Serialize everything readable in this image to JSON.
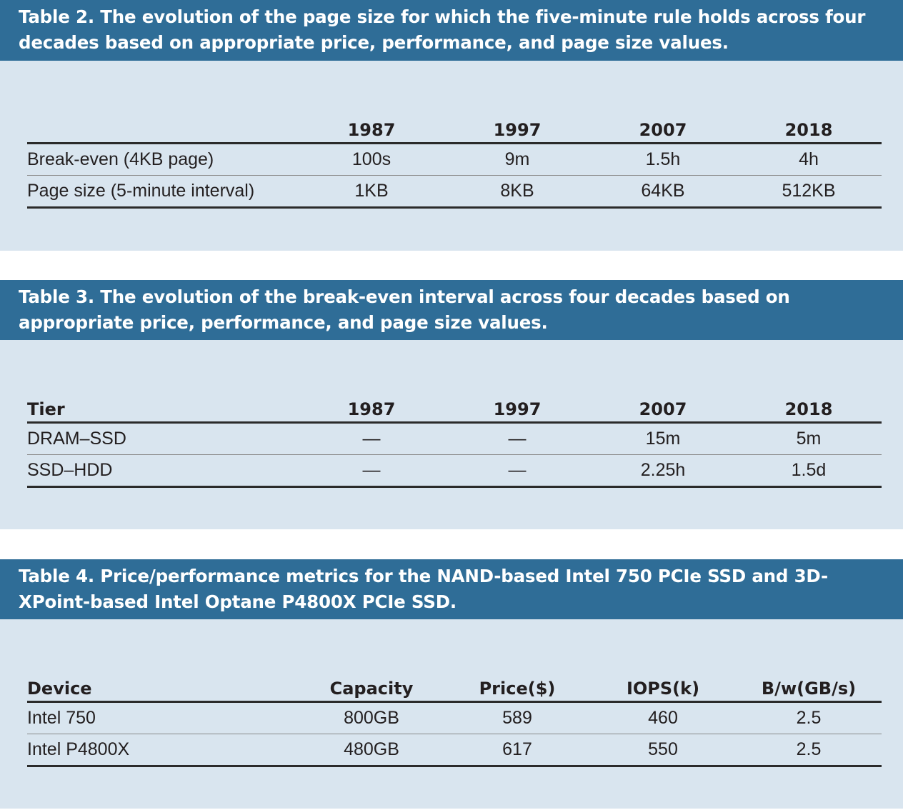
{
  "table2": {
    "caption": "Table 2. The evolution of the page size for which the five-minute rule holds across four decades based on appropriate price, performance, and page size values.",
    "headers": [
      "",
      "1987",
      "1997",
      "2007",
      "2018"
    ],
    "rows": [
      [
        "Break-even (4KB page)",
        "100s",
        "9m",
        "1.5h",
        "4h"
      ],
      [
        "Page size (5-minute interval)",
        "1KB",
        "8KB",
        "64KB",
        "512KB"
      ]
    ]
  },
  "table3": {
    "caption": "Table 3. The evolution of the break-even interval across four decades based on appropriate price, performance, and page size values.",
    "headers": [
      "Tier",
      "1987",
      "1997",
      "2007",
      "2018"
    ],
    "rows": [
      [
        "DRAM–SSD",
        "—",
        "—",
        "15m",
        "5m"
      ],
      [
        "SSD–HDD",
        "—",
        "—",
        "2.25h",
        "1.5d"
      ]
    ]
  },
  "table4": {
    "caption": "Table 4. Price/performance metrics for the NAND-based Intel 750 PCIe SSD and 3D-XPoint-based Intel Optane P4800X PCIe SSD.",
    "headers": [
      "Device",
      "Capacity",
      "Price($)",
      "IOPS(k)",
      "B/w(GB/s)"
    ],
    "rows": [
      [
        "Intel 750",
        "800GB",
        "589",
        "460",
        "2.5"
      ],
      [
        "Intel P4800X",
        "480GB",
        "617",
        "550",
        "2.5"
      ]
    ]
  }
}
